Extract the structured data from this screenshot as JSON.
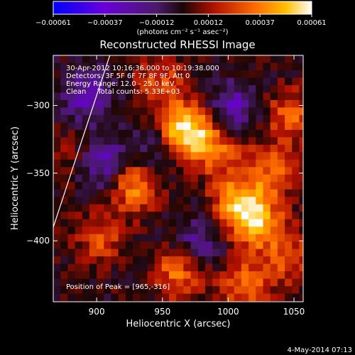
{
  "chart_data": {
    "type": "heatmap",
    "title": "Reconstructed RHESSI Image",
    "xlabel": "Heliocentric X (arcsec)",
    "ylabel": "Heliocentric Y (arcsec)",
    "xlim": [
      867,
      1057
    ],
    "ylim": [
      -445,
      -263
    ],
    "xticks": [
      900,
      950,
      1000,
      1050
    ],
    "yticks": [
      -300,
      -350,
      -400
    ],
    "colorbar": {
      "ticks": [
        "-0.00061",
        "-0.00037",
        "-0.00012",
        "0.00012",
        "0.00037",
        "0.00061"
      ],
      "range": [
        -0.00061,
        0.00061
      ],
      "units_label": "(photons cm⁻² s⁻¹ asec⁻²)"
    },
    "annotations": [
      "30-Apr-2012 10:16:36.000 to 10:19:38.000",
      "Detectors: 3F 5F 6F 7F 8F 9F, Att 0",
      "Energy Range: 12.0 - 25.0 keV",
      "Clean     Total counts: 5.33E+03",
      "Position of Peak = [965,-316]"
    ],
    "timestamp": "4-May-2014 07:13",
    "peak": {
      "x": 965,
      "y": -316
    },
    "limb_line": [
      {
        "x": 867,
        "y": -390
      },
      {
        "x": 910,
        "y": -263
      }
    ],
    "sources": [
      {
        "x": 965,
        "y": -316,
        "value": 0.00061
      },
      {
        "x": 925,
        "y": -355,
        "value": 0.0004
      },
      {
        "x": 1005,
        "y": -370,
        "value": 0.00045
      },
      {
        "x": 1020,
        "y": -385,
        "value": 0.0004
      },
      {
        "x": 990,
        "y": -330,
        "value": 0.0003
      },
      {
        "x": 1045,
        "y": -305,
        "value": 0.0003
      },
      {
        "x": 1030,
        "y": -345,
        "value": 0.00028
      },
      {
        "x": 960,
        "y": -420,
        "value": 0.00035
      },
      {
        "x": 1010,
        "y": -430,
        "value": 0.0003
      },
      {
        "x": 900,
        "y": -395,
        "value": 0.00025
      },
      {
        "x": 945,
        "y": -280,
        "value": 0.00025
      },
      {
        "x": 1045,
        "y": -410,
        "value": 0.00025
      },
      {
        "x": 885,
        "y": -335,
        "value": 0.0002
      },
      {
        "x": 900,
        "y": -340,
        "value": -0.0004
      },
      {
        "x": 1000,
        "y": -300,
        "value": -0.0003
      },
      {
        "x": 890,
        "y": -290,
        "value": -0.0003
      },
      {
        "x": 975,
        "y": -400,
        "value": -0.00025
      },
      {
        "x": 940,
        "y": -330,
        "value": -0.0002
      }
    ]
  }
}
